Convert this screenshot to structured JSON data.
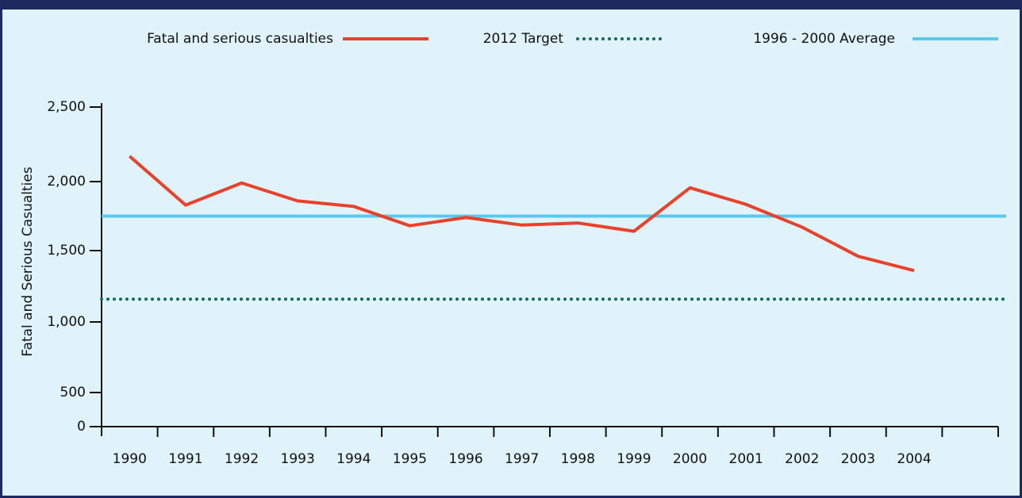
{
  "chart_data": {
    "type": "line",
    "y_label": "Fatal and Serious Casualties",
    "categories": [
      "1990",
      "1991",
      "1992",
      "1993",
      "1994",
      "1995",
      "1996",
      "1997",
      "1998",
      "1999",
      "2000",
      "2001",
      "2002",
      "2003",
      "2004",
      null
    ],
    "series": [
      {
        "name": "Fatal and serious casualties",
        "color": "#e8412c",
        "values": [
          2170,
          1830,
          1990,
          1860,
          1820,
          1680,
          1740,
          1685,
          1700,
          1640,
          1955,
          1835,
          1670,
          1460,
          1360,
          null
        ]
      }
    ],
    "reference_lines": [
      {
        "name": "2012 Target",
        "color": "#0f6b5a",
        "style": "dotted",
        "value": 1160
      },
      {
        "name": "1996 - 2000 Average",
        "color": "#5bc8ee",
        "style": "solid",
        "value": 1750
      }
    ],
    "ylim": [
      0,
      2500
    ],
    "yticks": [
      0,
      500,
      {
        "value": 1000,
        "label": "1,000"
      },
      {
        "value": 1500,
        "label": "1,500"
      },
      {
        "value": 2000,
        "label": "2,000"
      },
      {
        "value": 2500,
        "label": "2,500"
      }
    ],
    "grid": false
  }
}
